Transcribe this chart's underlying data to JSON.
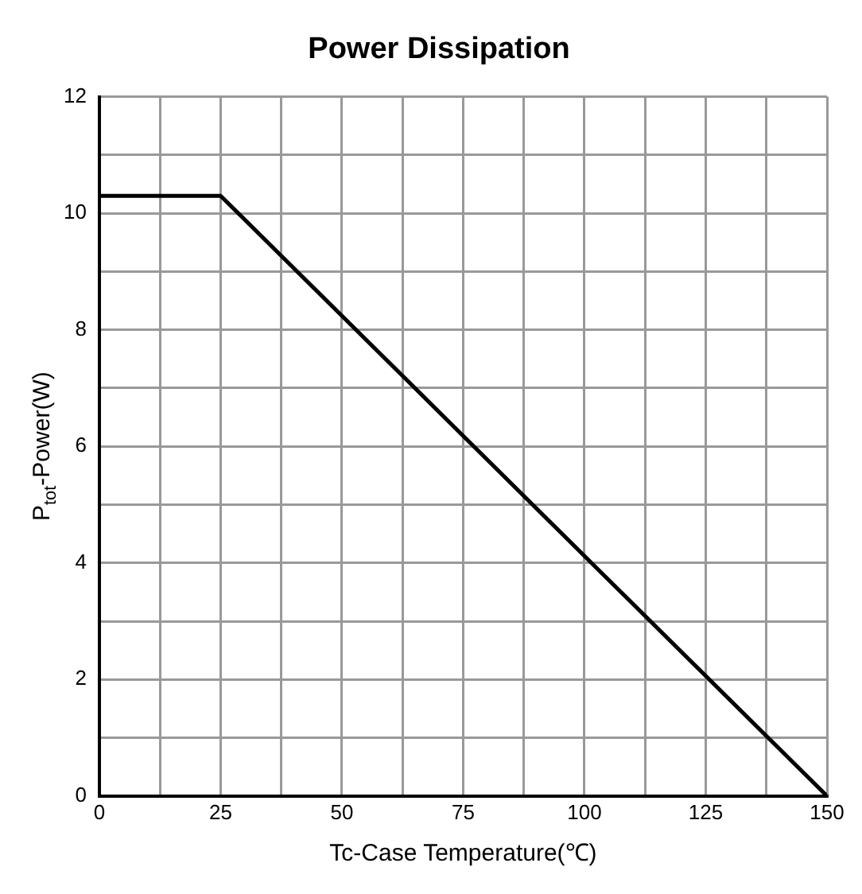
{
  "chart_data": {
    "type": "line",
    "title": "Power Dissipation",
    "xlabel": "Tc-Case Temperature(℃)",
    "ylabel": "P$_{tot}$-Power(W)",
    "x": [
      0,
      25,
      150
    ],
    "series": [
      {
        "color": "#000000",
        "values": [
          10.3,
          10.3,
          0
        ]
      }
    ],
    "xlim": [
      0,
      150
    ],
    "ylim": [
      0,
      12
    ],
    "xticks": [
      0,
      {
        "value": 12.5,
        "label": null
      },
      25,
      {
        "value": 37.5,
        "label": null
      },
      50,
      {
        "value": 62.5,
        "label": null
      },
      75,
      {
        "value": 87.5,
        "label": null
      },
      100,
      {
        "value": 112.5,
        "label": null
      },
      125,
      {
        "value": 137.5,
        "label": null
      },
      150
    ],
    "yticks": [
      0,
      {
        "value": 1,
        "label": null
      },
      2,
      {
        "value": 3,
        "label": null
      },
      4,
      {
        "value": 5,
        "label": null
      },
      6,
      {
        "value": 7,
        "label": null
      },
      8,
      {
        "value": 9,
        "label": null
      },
      10,
      {
        "value": 11,
        "label": null
      },
      12
    ],
    "grid": true,
    "legend": false,
    "marker": "none",
    "line_style": "solid"
  }
}
